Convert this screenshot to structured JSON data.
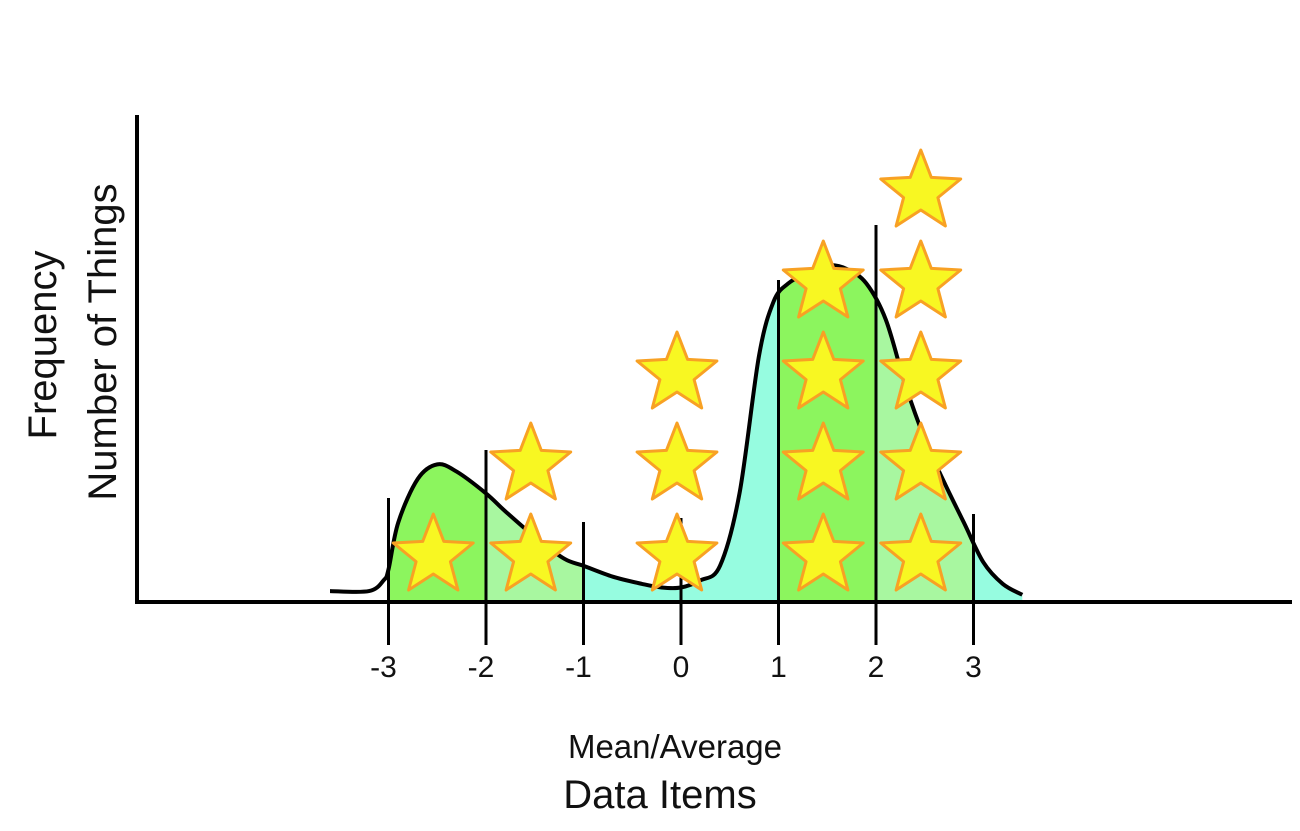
{
  "chart_data": {
    "type": "area",
    "xlabel_top": "Mean/Average",
    "xlabel": "Data Items",
    "ylabel_top": "Frequency",
    "ylabel": "Number of Things",
    "x_ticks": [
      "-3",
      "-2",
      "-1",
      "0",
      "1",
      "2",
      "3"
    ],
    "xlim": [
      -3.6,
      3.6
    ],
    "curve": {
      "x": [
        -3.6,
        -3.2,
        -3.05,
        -3.0,
        -2.9,
        -2.7,
        -2.5,
        -2.3,
        -2.0,
        -1.8,
        -1.5,
        -1.2,
        -1.0,
        -0.7,
        -0.4,
        -0.2,
        0.0,
        0.2,
        0.4,
        0.6,
        0.8,
        0.95,
        1.1,
        1.3,
        1.5,
        1.7,
        1.9,
        2.1,
        2.3,
        2.5,
        2.7,
        2.9,
        3.1,
        3.3,
        3.5
      ],
      "y": [
        0.03,
        0.03,
        0.06,
        0.09,
        0.22,
        0.34,
        0.38,
        0.36,
        0.3,
        0.25,
        0.18,
        0.12,
        0.1,
        0.07,
        0.05,
        0.04,
        0.04,
        0.06,
        0.1,
        0.3,
        0.68,
        0.83,
        0.88,
        0.91,
        0.93,
        0.92,
        0.88,
        0.78,
        0.6,
        0.45,
        0.33,
        0.22,
        0.11,
        0.05,
        0.02
      ]
    },
    "fill_colors": {
      "green": "#8cf55e",
      "light_green": "#a8f7a0",
      "cyan": "#96fce0"
    },
    "stars": {
      "columns": [
        {
          "x": -2.5,
          "count": 1
        },
        {
          "x": -1.5,
          "count": 2
        },
        {
          "x": 0.0,
          "count": 3
        },
        {
          "x": 1.5,
          "count": 4
        },
        {
          "x": 2.5,
          "count": 5
        }
      ],
      "fill": "#f8f722",
      "stroke": "#f8a124"
    },
    "grid": false,
    "legend": "none"
  }
}
